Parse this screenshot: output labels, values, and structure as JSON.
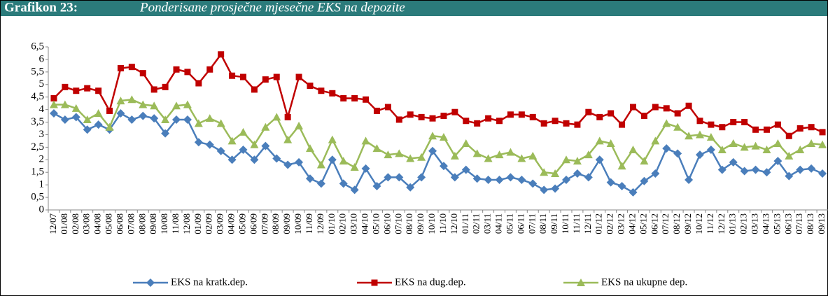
{
  "chart_data": {
    "type": "line",
    "label": "Grafikon 23:",
    "title": "Ponderisane prosječne mjesečne EKS na depozite",
    "categories": [
      "12/07",
      "01/08",
      "02/08",
      "03/08",
      "04/08",
      "05/08",
      "06/08",
      "07/08",
      "08/08",
      "09/08",
      "10/08",
      "11/08",
      "12/08",
      "01/09",
      "02/09",
      "03/09",
      "04/09",
      "05/09",
      "06/09",
      "07/09",
      "08/09",
      "09/09",
      "10/09",
      "11/09",
      "12/09",
      "01/10",
      "02/10",
      "03/10",
      "04/10",
      "05/10",
      "06/10",
      "07/10",
      "08/10",
      "09/10",
      "10/10",
      "11/10",
      "12/10",
      "01/11",
      "02/11",
      "03/11",
      "04/11",
      "05/11",
      "06/11",
      "07/11",
      "08/11",
      "09/11",
      "10/11",
      "11/11",
      "12/11",
      "01/12",
      "02/12",
      "03/12",
      "04/12",
      "05/12",
      "06/12",
      "07/12",
      "08/12",
      "09/12",
      "10/12",
      "11/12",
      "12/12",
      "01/13",
      "02/13",
      "03/13",
      "04/13",
      "05/13",
      "06/13",
      "07/13",
      "08/13",
      "09/13"
    ],
    "series": [
      {
        "name": "EKS na kratk.dep.",
        "color": "#4a7ebb",
        "marker": "diamond",
        "values": [
          3.85,
          3.6,
          3.7,
          3.2,
          3.4,
          3.2,
          3.85,
          3.6,
          3.75,
          3.65,
          3.05,
          3.6,
          3.6,
          2.7,
          2.6,
          2.35,
          2.0,
          2.4,
          2.0,
          2.55,
          2.05,
          1.8,
          1.9,
          1.25,
          1.05,
          2.0,
          1.05,
          0.8,
          1.65,
          0.95,
          1.3,
          1.3,
          0.9,
          1.3,
          2.35,
          1.75,
          1.3,
          1.6,
          1.25,
          1.2,
          1.2,
          1.3,
          1.2,
          1.05,
          0.8,
          0.85,
          1.2,
          1.45,
          1.3,
          2.0,
          1.1,
          0.95,
          0.7,
          1.15,
          1.45,
          2.45,
          2.25,
          1.2,
          2.2,
          2.4,
          1.6,
          1.9,
          1.55,
          1.6,
          1.5,
          1.95,
          1.35,
          1.6,
          1.65,
          1.45
        ]
      },
      {
        "name": "EKS na dug.dep.",
        "color": "#c00000",
        "marker": "square",
        "values": [
          4.45,
          4.9,
          4.75,
          4.85,
          4.75,
          3.95,
          5.65,
          5.7,
          5.45,
          4.8,
          4.9,
          5.6,
          5.5,
          5.05,
          5.6,
          6.2,
          5.35,
          5.3,
          4.8,
          5.2,
          5.3,
          3.7,
          5.3,
          4.95,
          4.75,
          4.65,
          4.45,
          4.45,
          4.4,
          3.95,
          4.1,
          3.6,
          3.8,
          3.7,
          3.65,
          3.75,
          3.9,
          3.55,
          3.45,
          3.65,
          3.55,
          3.8,
          3.8,
          3.7,
          3.45,
          3.55,
          3.45,
          3.4,
          3.9,
          3.7,
          3.85,
          3.4,
          4.1,
          3.75,
          4.1,
          4.05,
          3.85,
          4.15,
          3.55,
          3.4,
          3.3,
          3.5,
          3.5,
          3.2,
          3.2,
          3.4,
          2.95,
          3.25,
          3.3,
          3.1
        ]
      },
      {
        "name": "EKS na ukupne dep.",
        "color": "#9bbb59",
        "marker": "triangle",
        "values": [
          4.2,
          4.2,
          4.05,
          3.6,
          3.85,
          3.3,
          4.35,
          4.4,
          4.2,
          4.15,
          3.6,
          4.15,
          4.2,
          3.45,
          3.65,
          3.45,
          2.75,
          3.1,
          2.6,
          3.3,
          3.7,
          2.8,
          3.35,
          2.45,
          1.8,
          2.8,
          1.95,
          1.7,
          2.75,
          2.45,
          2.2,
          2.25,
          2.05,
          2.1,
          2.95,
          2.9,
          2.15,
          2.65,
          2.25,
          2.05,
          2.2,
          2.3,
          2.05,
          2.15,
          1.5,
          1.45,
          2.0,
          1.95,
          2.2,
          2.75,
          2.65,
          1.75,
          2.4,
          1.95,
          2.75,
          3.45,
          3.3,
          2.95,
          3.0,
          2.9,
          2.4,
          2.65,
          2.5,
          2.55,
          2.4,
          2.65,
          2.15,
          2.4,
          2.65,
          2.6
        ]
      }
    ],
    "ylim": [
      0,
      6.5
    ],
    "yticks": [
      0,
      {
        "value": 0.5,
        "label": "0,5"
      },
      1,
      {
        "value": 1.5,
        "label": "1,5"
      },
      2,
      {
        "value": 2.5,
        "label": "2,5"
      },
      3,
      {
        "value": 3.5,
        "label": "3,5"
      },
      4,
      {
        "value": 4.5,
        "label": "4,5"
      },
      5,
      {
        "value": 5.5,
        "label": "5,5"
      },
      6,
      {
        "value": 6.5,
        "label": "6,5"
      }
    ],
    "grid": false,
    "legend": "bottom"
  }
}
